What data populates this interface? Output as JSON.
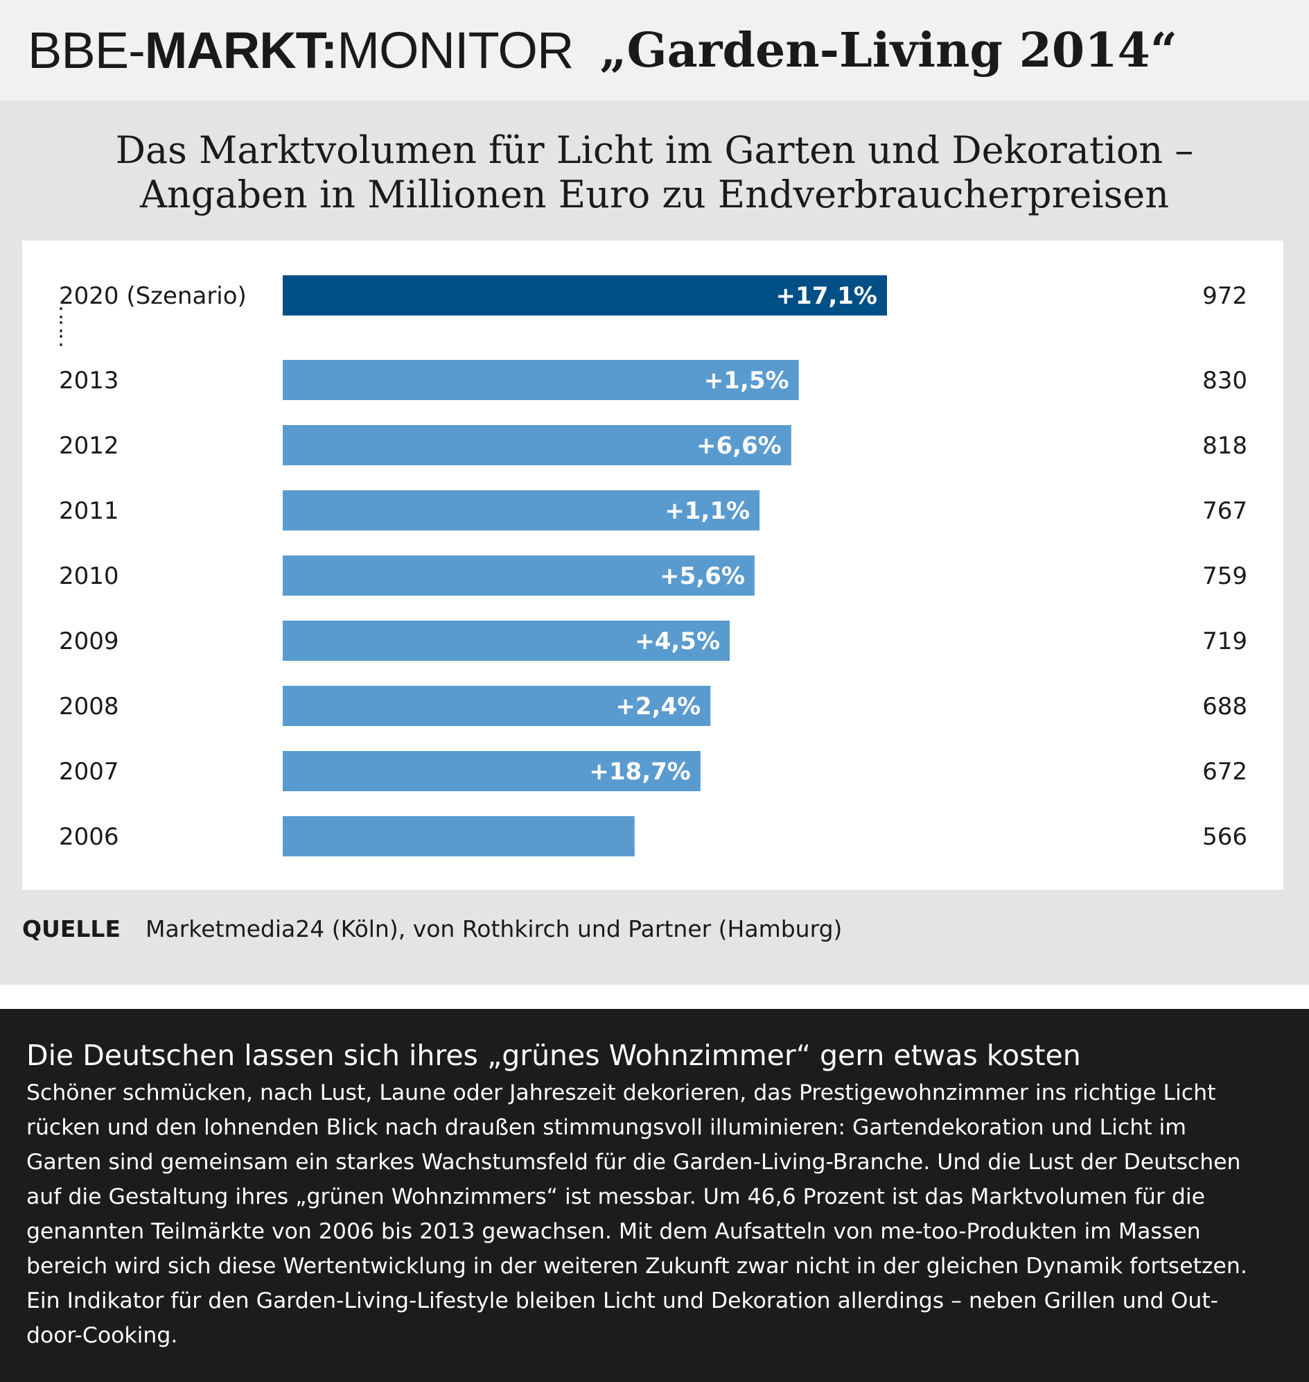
{
  "header": {
    "brand_prefix": "BBE-",
    "brand_bold": "MARKT:",
    "brand_light": "MONITOR",
    "edition": "„Garden-Living 2014“"
  },
  "chart_data": {
    "type": "bar",
    "orientation": "horizontal",
    "title_lines": [
      "Das Marktvolumen für Licht im Garten und Dekoration –",
      "Angaben in Millionen Euro zu Endverbraucherpreisen"
    ],
    "categories": [
      "2020 (Szenario)",
      "2013",
      "2012",
      "2011",
      "2010",
      "2009",
      "2008",
      "2007",
      "2006"
    ],
    "values": [
      972,
      830,
      818,
      767,
      759,
      719,
      688,
      672,
      566
    ],
    "growth_labels": [
      "+17,1%",
      "+1,5%",
      "+6,6%",
      "+1,1%",
      "+5,6%",
      "+4,5%",
      "+2,4%",
      "+18,7%",
      ""
    ],
    "value_labels": [
      "972",
      "830",
      "818",
      "767",
      "759",
      "719",
      "688",
      "672",
      "566"
    ],
    "xlim": [
      0,
      972
    ],
    "grid": false,
    "gap_marker": ":",
    "colors": {
      "scenario_bar": "#004f86",
      "bar": "#5a9bcf",
      "bar_label": "#ffffff"
    }
  },
  "source": {
    "label": "QUELLE",
    "text": "Marketmedia24 (Köln), von Rothkirch und Partner (Hamburg)"
  },
  "article": {
    "headline": "Die Deutschen lassen sich ihres „grünes Wohnzimmer“ gern etwas kosten",
    "body_lines": [
      "Schöner schmücken, nach Lust, Laune oder Jahreszeit dekorieren, das Prestigewohnzimmer ins richtige Licht",
      "rücken und den lohnenden Blick nach draußen stimmungsvoll illuminieren: Gartendekoration und Licht im",
      "Garten sind gemeinsam ein starkes Wachstumsfeld für die Garden-Living-Branche. Und die Lust der Deutschen",
      "auf die Gestaltung ihres „grünen Wohnzimmers“ ist messbar. Um 46,6 Prozent ist das Marktvolumen für die",
      "genannten Teilmärkte von 2006 bis 2013 gewachsen. Mit dem Aufsatteln von me-too-Produkten im Massen",
      "bereich wird sich diese Wertentwicklung in der weiteren Zukunft zwar nicht in der gleichen Dynamik fortsetzen.",
      "Ein Indikator für den Garden-Living-Lifestyle bleiben Licht und Dekoration allerdings – neben Grillen und Out-",
      "door-Cooking."
    ]
  }
}
